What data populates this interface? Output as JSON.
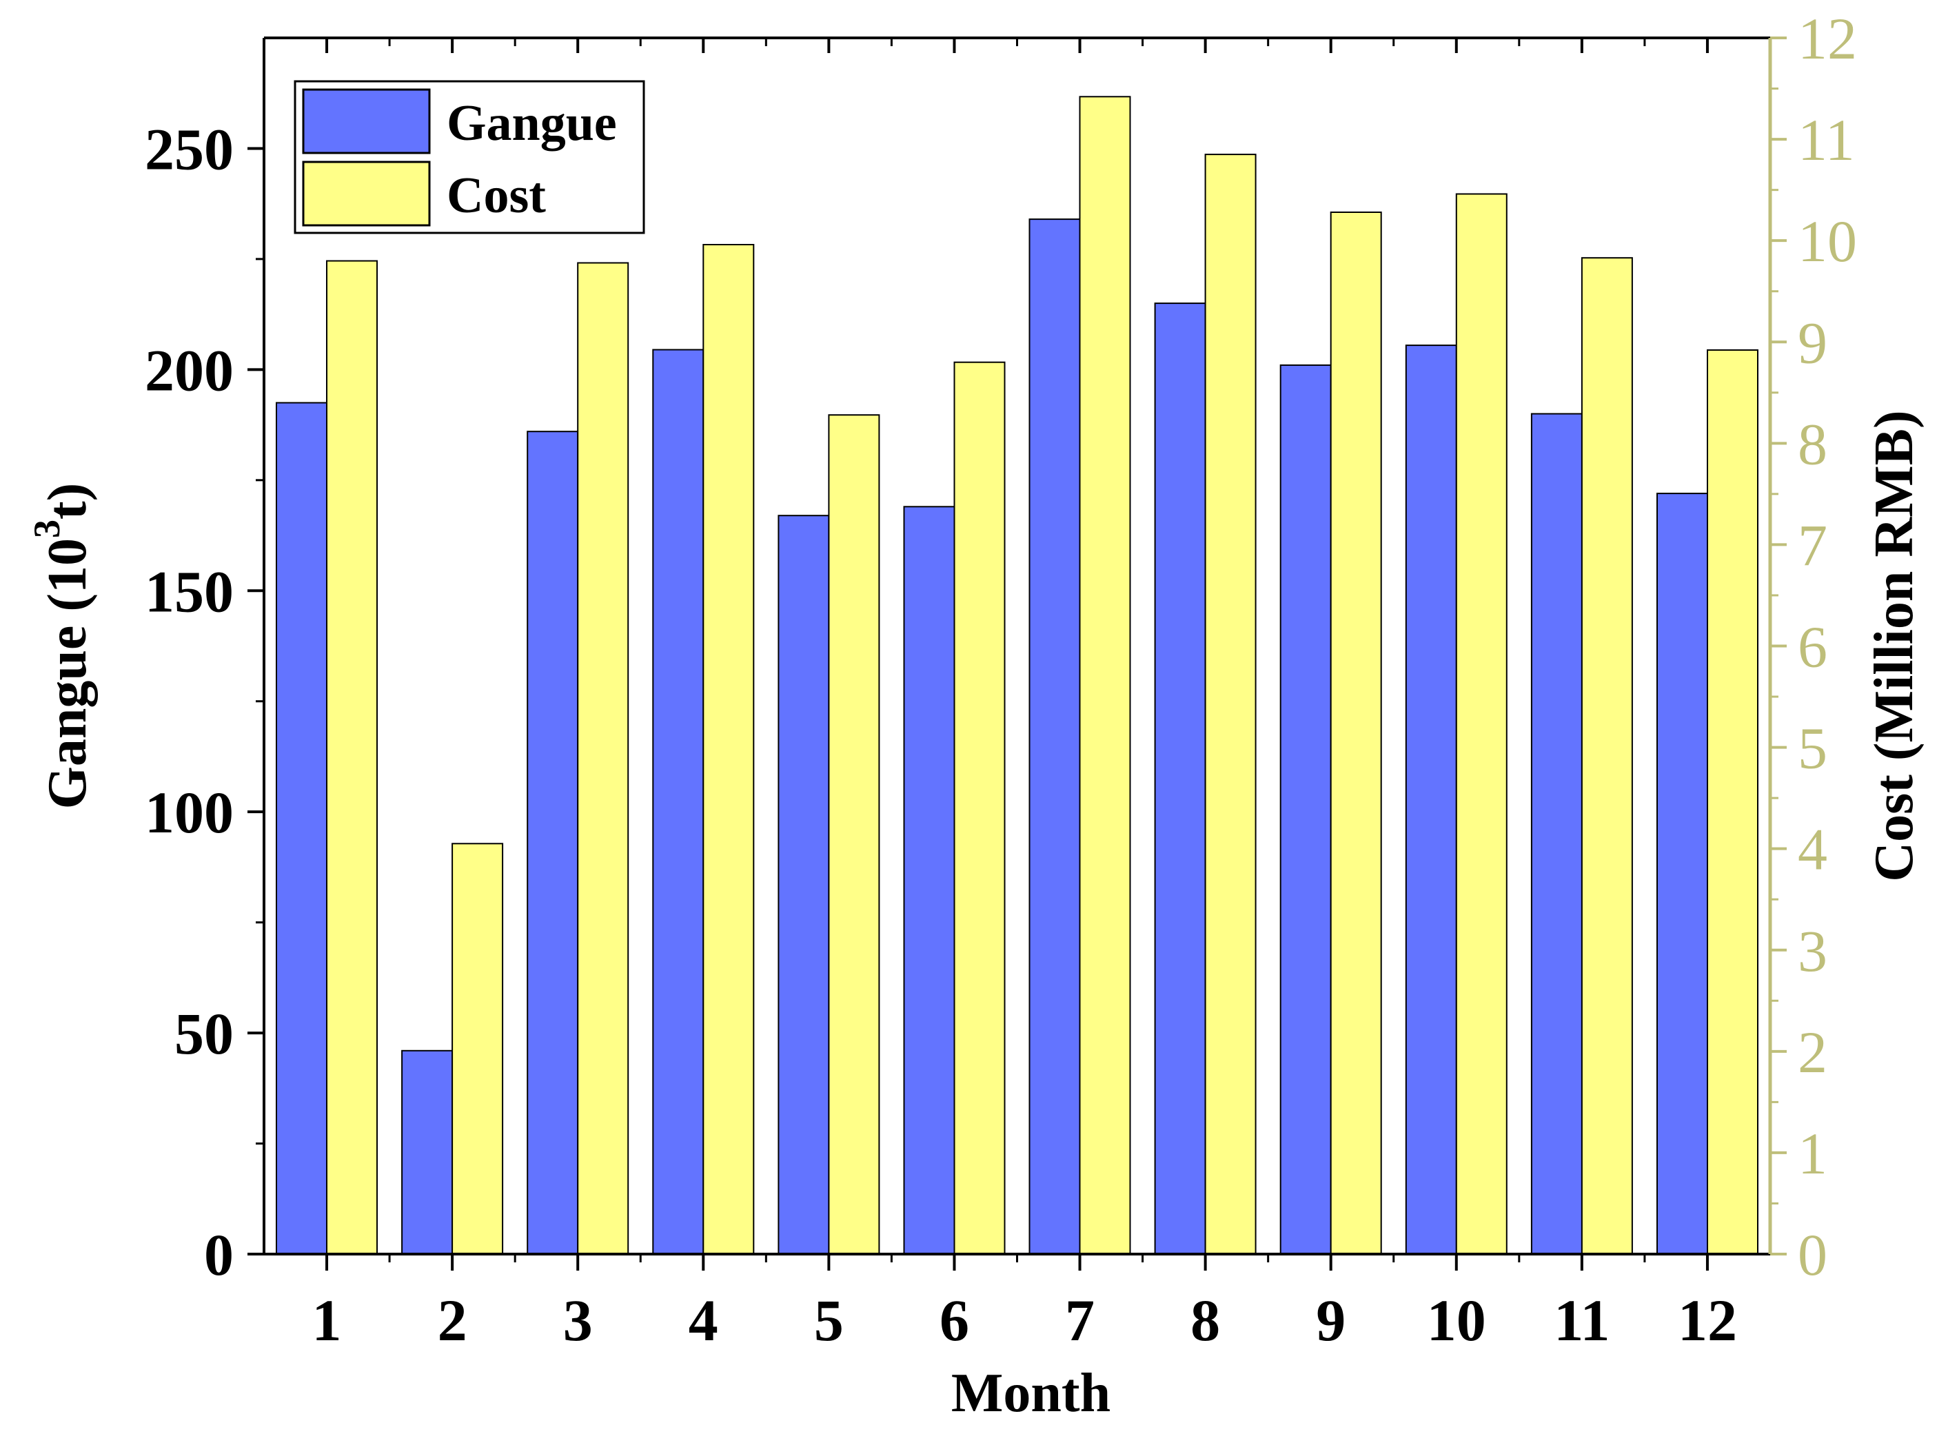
{
  "chart_data": {
    "type": "bar",
    "title": "",
    "categories": [
      "1",
      "2",
      "3",
      "4",
      "5",
      "6",
      "7",
      "8",
      "9",
      "10",
      "11",
      "12"
    ],
    "series": [
      {
        "name": "Gangue",
        "axis": "left",
        "color": "#6374FF",
        "values": [
          192.5,
          46,
          186,
          204.5,
          167,
          169,
          234,
          215,
          201,
          205.5,
          190,
          172
        ]
      },
      {
        "name": "Cost",
        "axis": "right",
        "color": "#FFFF88",
        "values": [
          9.8,
          4.05,
          9.78,
          9.96,
          8.28,
          8.8,
          11.42,
          10.85,
          10.28,
          10.46,
          9.83,
          8.92
        ]
      }
    ],
    "xlabel": "Month",
    "ylabel_left": {
      "prefix": "Gangue (10",
      "superscript": "3",
      "suffix": "t)"
    },
    "ylabel_right": "Cost (Million RMB)",
    "ylim_left": [
      0,
      275
    ],
    "ylim_right": [
      0,
      12
    ],
    "yticks_left": [
      "0",
      "50",
      "100",
      "150",
      "200",
      "250"
    ],
    "yticks_right": [
      "0",
      "1",
      "2",
      "3",
      "4",
      "5",
      "6",
      "7",
      "8",
      "9",
      "10",
      "11",
      "12"
    ],
    "right_axis_color": "#BEBE7A",
    "axis_color": "#000000",
    "legend_position": "top-left",
    "grid": false
  }
}
